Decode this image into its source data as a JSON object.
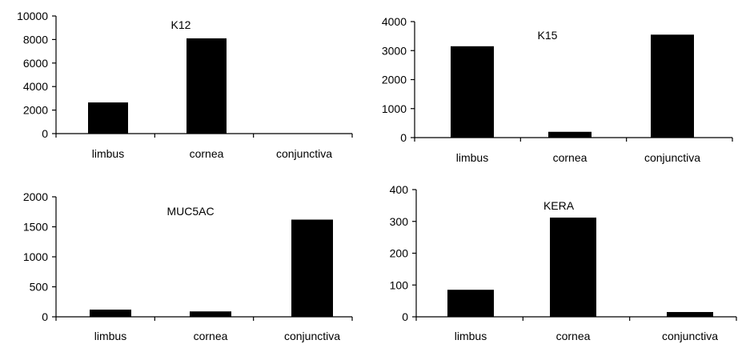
{
  "chart_data": [
    {
      "type": "bar",
      "title": "K12",
      "categories": [
        "limbus",
        "cornea",
        "conjunctiva"
      ],
      "values": [
        2650,
        8100,
        0
      ],
      "ylim": [
        0,
        10000
      ],
      "yticks": [
        "0",
        "2000",
        "4000",
        "6000",
        "8000",
        "10000"
      ],
      "xlabel": "",
      "ylabel": "",
      "grid": false
    },
    {
      "type": "bar",
      "title": "K15",
      "categories": [
        "limbus",
        "cornea",
        "conjunctiva"
      ],
      "values": [
        3150,
        200,
        3550
      ],
      "ylim": [
        0,
        4000
      ],
      "yticks": [
        "0",
        "1000",
        "2000",
        "3000",
        "4000"
      ],
      "xlabel": "",
      "ylabel": "",
      "grid": false
    },
    {
      "type": "bar",
      "title": "MUC5AC",
      "categories": [
        "limbus",
        "cornea",
        "conjunctiva"
      ],
      "values": [
        120,
        90,
        1620
      ],
      "ylim": [
        0,
        2000
      ],
      "yticks": [
        "0",
        "500",
        "1000",
        "1500",
        "2000"
      ],
      "xlabel": "",
      "ylabel": "",
      "grid": false
    },
    {
      "type": "bar",
      "title": "KERA",
      "categories": [
        "limbus",
        "cornea",
        "conjunctiva"
      ],
      "values": [
        85,
        312,
        15
      ],
      "ylim": [
        0,
        400
      ],
      "yticks": [
        "0",
        "100",
        "200",
        "300",
        "400"
      ],
      "xlabel": "",
      "ylabel": "",
      "grid": false
    }
  ]
}
